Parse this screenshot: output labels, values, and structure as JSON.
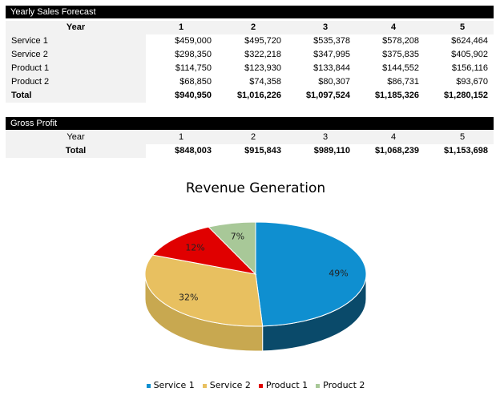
{
  "sales": {
    "title": "Yearly Sales Forecast",
    "year_label": "Year",
    "years": [
      "1",
      "2",
      "3",
      "4",
      "5"
    ],
    "rows": [
      {
        "label": "Service 1",
        "values": [
          "$459,000",
          "$495,720",
          "$535,378",
          "$578,208",
          "$624,464"
        ]
      },
      {
        "label": "Service 2",
        "values": [
          "$298,350",
          "$322,218",
          "$347,995",
          "$375,835",
          "$405,902"
        ]
      },
      {
        "label": "Product 1",
        "values": [
          "$114,750",
          "$123,930",
          "$133,844",
          "$144,552",
          "$156,116"
        ]
      },
      {
        "label": "Product 2",
        "values": [
          "$68,850",
          "$74,358",
          "$80,307",
          "$86,731",
          "$93,670"
        ]
      },
      {
        "label": "Total",
        "values": [
          "$940,950",
          "$1,016,226",
          "$1,097,524",
          "$1,185,326",
          "$1,280,152"
        ]
      }
    ]
  },
  "gross": {
    "title": "Gross Profit",
    "year_label": "Year",
    "years": [
      "1",
      "2",
      "3",
      "4",
      "5"
    ],
    "total_label": "Total",
    "values": [
      "$848,003",
      "$915,843",
      "$989,110",
      "$1,068,239",
      "$1,153,698"
    ]
  },
  "chart_data": {
    "type": "pie",
    "title": "Revenue Generation",
    "style": "3d",
    "legend": "bottom",
    "categories": [
      "Service 1",
      "Service 2",
      "Product 1",
      "Product 2"
    ],
    "values": [
      49,
      32,
      12,
      7
    ],
    "labels": [
      "49%",
      "32%",
      "12%",
      "7%"
    ],
    "colors": [
      "#0f8fd0",
      "#e8c060",
      "#e00000",
      "#a8c898"
    ]
  }
}
